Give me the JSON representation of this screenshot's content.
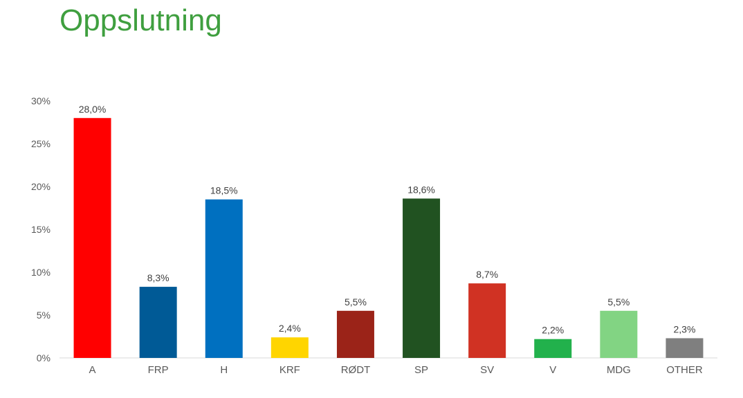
{
  "title": "Oppslutning",
  "chart_data": {
    "type": "bar",
    "title": "",
    "xlabel": "",
    "ylabel": "",
    "ylim": [
      0,
      30
    ],
    "yticks": [
      "0%",
      "5%",
      "10%",
      "15%",
      "20%",
      "25%",
      "30%"
    ],
    "categories": [
      "A",
      "FRP",
      "H",
      "KRF",
      "RØDT",
      "SP",
      "SV",
      "V",
      "MDG",
      "OTHER"
    ],
    "values": [
      28.0,
      8.3,
      18.5,
      2.4,
      5.5,
      18.6,
      8.7,
      2.2,
      5.5,
      2.3
    ],
    "labels": [
      "28,0%",
      "8,3%",
      "18,5%",
      "2,4%",
      "5,5%",
      "18,6%",
      "8,7%",
      "2,2%",
      "5,5%",
      "2,3%"
    ],
    "colors": [
      "#ff0000",
      "#005a96",
      "#0070c0",
      "#ffd500",
      "#9b2318",
      "#215221",
      "#d03223",
      "#22b14c",
      "#82d483",
      "#7f7f7f"
    ],
    "grid": false,
    "legend": "none"
  }
}
